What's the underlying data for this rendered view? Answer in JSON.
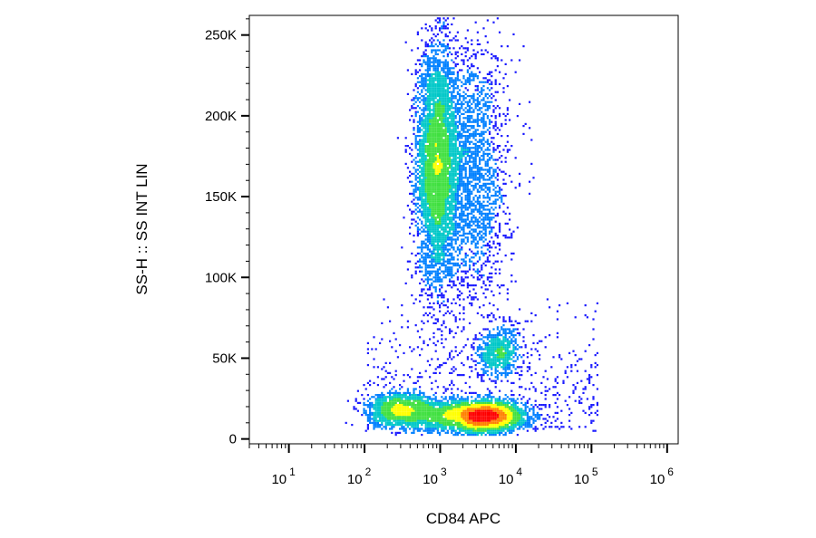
{
  "chart_data": {
    "type": "scatter",
    "subtype": "flow-cytometry-density-dot-plot",
    "title": "",
    "xlabel": "CD84 APC",
    "ylabel": "SS-H :: SS INT LIN",
    "x_scale": "log",
    "y_scale": "linear",
    "xlim": [
      3,
      1400000
    ],
    "ylim": [
      -3000,
      262144
    ],
    "grid": false,
    "legend": "none",
    "x_ticks": [
      {
        "value": 10,
        "base": "10",
        "exp": "1"
      },
      {
        "value": 100,
        "base": "10",
        "exp": "2"
      },
      {
        "value": 1000,
        "base": "10",
        "exp": "3"
      },
      {
        "value": 10000,
        "base": "10",
        "exp": "4"
      },
      {
        "value": 100000,
        "base": "10",
        "exp": "5"
      },
      {
        "value": 1000000,
        "base": "10",
        "exp": "6"
      }
    ],
    "y_ticks": [
      {
        "value": 0,
        "label": "0"
      },
      {
        "value": 50000,
        "label": "50K"
      },
      {
        "value": 100000,
        "label": "100K"
      },
      {
        "value": 150000,
        "label": "150K"
      },
      {
        "value": 200000,
        "label": "200K"
      },
      {
        "value": 250000,
        "label": "250K"
      }
    ],
    "density_colors": [
      "#1a1aff",
      "#0080ff",
      "#00c8c8",
      "#40e040",
      "#ffff00",
      "#ff8000",
      "#ff0000"
    ],
    "populations": [
      {
        "center_x": 900,
        "center_y": 170000,
        "spread_log_x": 0.13,
        "spread_y": 35000,
        "points": 5200,
        "peak": "yellow-green"
      },
      {
        "center_x": 2500,
        "center_y": 165000,
        "spread_log_x": 0.25,
        "spread_y": 40000,
        "points": 2400,
        "peak": "cyan"
      },
      {
        "center_x": 300,
        "center_y": 18000,
        "spread_log_x": 0.22,
        "spread_y": 5000,
        "points": 1500,
        "peak": "yellow-green"
      },
      {
        "center_x": 4000,
        "center_y": 14000,
        "spread_log_x": 0.25,
        "spread_y": 4500,
        "points": 3600,
        "peak": "red"
      },
      {
        "center_x": 1200,
        "center_y": 15000,
        "spread_log_x": 0.3,
        "spread_y": 5000,
        "points": 1200,
        "peak": "cyan"
      },
      {
        "center_x": 6000,
        "center_y": 53000,
        "spread_log_x": 0.14,
        "spread_y": 7500,
        "points": 800,
        "peak": "green"
      }
    ]
  }
}
